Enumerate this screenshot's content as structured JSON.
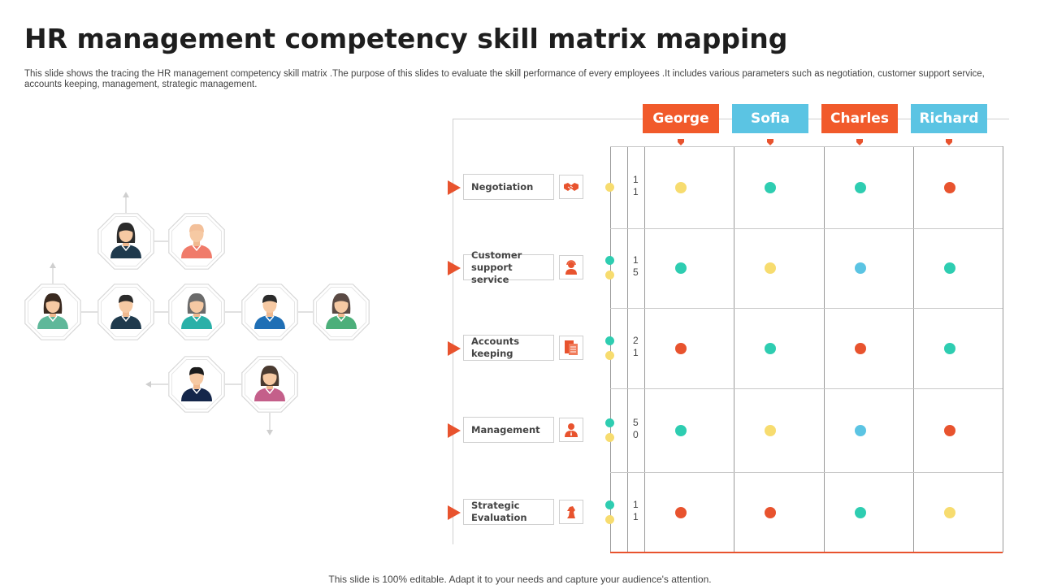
{
  "title": "HR management competency skill matrix mapping",
  "subtitle": "This slide shows the tracing the HR management competency skill matrix .The purpose of this slides to evaluate the skill performance of every employees .It includes various parameters such as negotiation, customer support service, accounts keeping, management, strategic management.",
  "footer": "This slide is 100% editable. Adapt it to your needs and capture your audience's attention.",
  "colors": {
    "orange": "#e8532e",
    "blue": "#5bc4e3",
    "teal": "#2ecdb1",
    "yellow": "#f7dc6f",
    "red": "#e8532e"
  },
  "employees": [
    {
      "name": "George",
      "tag_color": "#f15a2b"
    },
    {
      "name": "Sofia",
      "tag_color": "#5bc4e3"
    },
    {
      "name": "Charles",
      "tag_color": "#f15a2b"
    },
    {
      "name": "Richard",
      "tag_color": "#5bc4e3"
    }
  ],
  "parameters": [
    {
      "label": "Negotiation",
      "icon": "handshake-icon",
      "number": [
        "1",
        "1"
      ],
      "status_dots": [
        "#f7dc6f"
      ],
      "ratings": [
        "#f7dc6f",
        "#2ecdb1",
        "#2ecdb1",
        "#e8532e"
      ]
    },
    {
      "label": "Customer support service",
      "icon": "support-agent-icon",
      "number": [
        "1",
        "5"
      ],
      "status_dots": [
        "#2ecdb1",
        "#f7dc6f"
      ],
      "ratings": [
        "#2ecdb1",
        "#f7dc6f",
        "#5bc4e3",
        "#2ecdb1"
      ]
    },
    {
      "label": "Accounts keeping",
      "icon": "ledger-icon",
      "number": [
        "2",
        "1"
      ],
      "status_dots": [
        "#2ecdb1",
        "#f7dc6f"
      ],
      "ratings": [
        "#e8532e",
        "#2ecdb1",
        "#e8532e",
        "#2ecdb1"
      ]
    },
    {
      "label": "Management",
      "icon": "manager-icon",
      "number": [
        "5",
        "0"
      ],
      "status_dots": [
        "#2ecdb1",
        "#f7dc6f"
      ],
      "ratings": [
        "#2ecdb1",
        "#f7dc6f",
        "#5bc4e3",
        "#e8532e"
      ]
    },
    {
      "label": "Strategic Evaluation",
      "icon": "chess-knight-icon",
      "number": [
        "1",
        "1"
      ],
      "status_dots": [
        "#2ecdb1",
        "#f7dc6f"
      ],
      "ratings": [
        "#e8532e",
        "#e8532e",
        "#2ecdb1",
        "#f7dc6f"
      ]
    }
  ],
  "org_chart": {
    "people": [
      {
        "id": "p1",
        "gender": "female",
        "shirt": "#1f3a4d",
        "hair": "#2b2b2b"
      },
      {
        "id": "p2",
        "gender": "male",
        "shirt": "#f07b6a",
        "hair": "#f3c09a"
      },
      {
        "id": "p3",
        "gender": "female",
        "shirt": "#5fb89a",
        "hair": "#3a2a20"
      },
      {
        "id": "p4",
        "gender": "male",
        "shirt": "#1f3a4d",
        "hair": "#2b2b2b"
      },
      {
        "id": "p5",
        "gender": "female",
        "shirt": "#2ab0a8",
        "hair": "#6b6b6b"
      },
      {
        "id": "p6",
        "gender": "male",
        "shirt": "#1f6fb5",
        "hair": "#2b2b2b"
      },
      {
        "id": "p7",
        "gender": "female",
        "shirt": "#4caf7a",
        "hair": "#5a4a44"
      },
      {
        "id": "p8",
        "gender": "male",
        "shirt": "#14264a",
        "hair": "#1b1b1b"
      },
      {
        "id": "p9",
        "gender": "female",
        "shirt": "#c45f8a",
        "hair": "#4a3a30"
      }
    ]
  }
}
